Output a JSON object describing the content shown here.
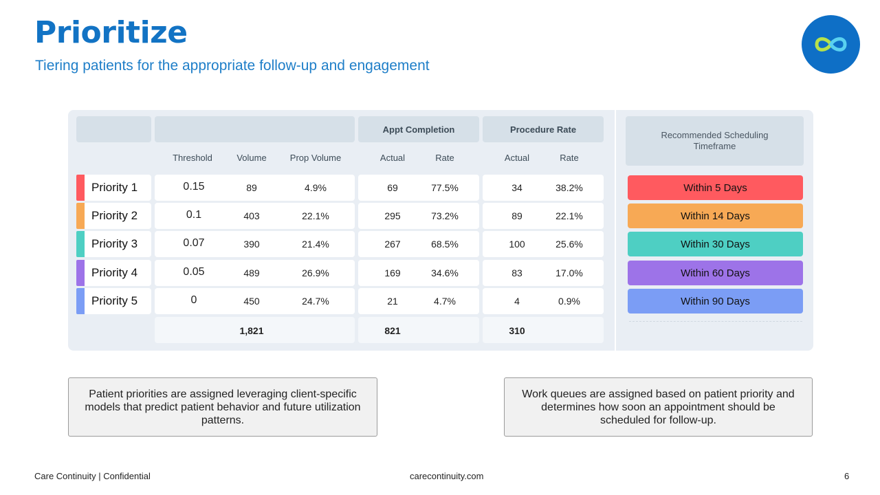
{
  "header": {
    "title": "Prioritize",
    "subtitle": "Tiering patients for the appropriate follow-up and engagement"
  },
  "logo": {
    "icon": "infinity-icon",
    "bg": "#0e6fc6",
    "stroke1": "#b7e24a",
    "stroke2": "#5ad1f0"
  },
  "table": {
    "group_headers": {
      "appt": "Appt Completion",
      "procedure": "Procedure Rate",
      "schedule": "Recommended Scheduling Timeframe"
    },
    "columns": {
      "threshold": "Threshold",
      "volume": "Volume",
      "prop_volume": "Prop Volume",
      "appt_actual": "Actual",
      "appt_rate": "Rate",
      "proc_actual": "Actual",
      "proc_rate": "Rate"
    },
    "rows": [
      {
        "label": "Priority 1",
        "color": "#ff5a5f",
        "threshold": "0.15",
        "volume": "89",
        "prop": "4.9%",
        "appt_actual": "69",
        "appt_rate": "77.5%",
        "proc_actual": "34",
        "proc_rate": "38.2%",
        "schedule": "Within 5 Days"
      },
      {
        "label": "Priority 2",
        "color": "#f7a955",
        "threshold": "0.1",
        "volume": "403",
        "prop": "22.1%",
        "appt_actual": "295",
        "appt_rate": "73.2%",
        "proc_actual": "89",
        "proc_rate": "22.1%",
        "schedule": "Within 14 Days"
      },
      {
        "label": "Priority 3",
        "color": "#4ecfc3",
        "threshold": "0.07",
        "volume": "390",
        "prop": "21.4%",
        "appt_actual": "267",
        "appt_rate": "68.5%",
        "proc_actual": "100",
        "proc_rate": "25.6%",
        "schedule": "Within 30 Days"
      },
      {
        "label": "Priority 4",
        "color": "#9d73e8",
        "threshold": "0.05",
        "volume": "489",
        "prop": "26.9%",
        "appt_actual": "169",
        "appt_rate": "34.6%",
        "proc_actual": "83",
        "proc_rate": "17.0%",
        "schedule": "Within 60 Days"
      },
      {
        "label": "Priority 5",
        "color": "#7b9df5",
        "threshold": "0",
        "volume": "450",
        "prop": "24.7%",
        "appt_actual": "21",
        "appt_rate": "4.7%",
        "proc_actual": "4",
        "proc_rate": "0.9%",
        "schedule": "Within 90 Days"
      }
    ],
    "totals": {
      "volume": "1,821",
      "appt_actual": "821",
      "proc_actual": "310"
    }
  },
  "notes": {
    "left": "Patient priorities are assigned leveraging client-specific models that predict patient behavior and future utilization patterns.",
    "right": "Work queues are assigned based on patient priority and determines how soon an appointment should be scheduled for follow-up."
  },
  "footer": {
    "left": "Care Continuity | Confidential",
    "center": "carecontinuity.com",
    "page": "6"
  }
}
